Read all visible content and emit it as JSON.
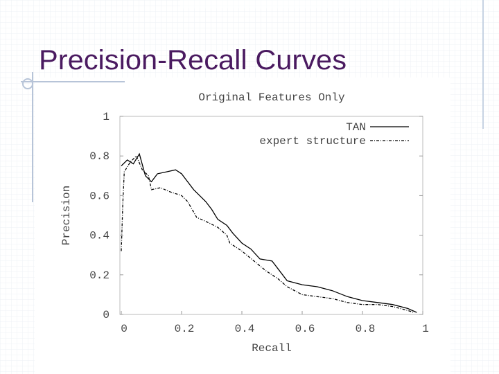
{
  "slide_title": "Precision-Recall Curves",
  "chart_data": {
    "type": "line",
    "title": "Original Features Only",
    "x_label": "Recall",
    "y_label": "Precision",
    "xlim": [
      0,
      1
    ],
    "ylim": [
      0,
      1
    ],
    "xticks": [
      0,
      0.2,
      0.4,
      0.6,
      0.8,
      1
    ],
    "yticks": [
      0,
      0.2,
      0.4,
      0.6,
      0.8,
      1
    ],
    "legend": "top-right",
    "series": [
      {
        "name": "TAN",
        "color": "#000000",
        "line_style": "solid",
        "x": [
          0.0,
          0.02,
          0.04,
          0.06,
          0.08,
          0.1,
          0.12,
          0.15,
          0.18,
          0.2,
          0.22,
          0.24,
          0.26,
          0.28,
          0.3,
          0.32,
          0.35,
          0.37,
          0.4,
          0.43,
          0.46,
          0.5,
          0.52,
          0.55,
          0.6,
          0.65,
          0.7,
          0.75,
          0.8,
          0.85,
          0.9,
          0.95,
          0.98
        ],
        "values": [
          0.75,
          0.78,
          0.76,
          0.81,
          0.7,
          0.67,
          0.71,
          0.72,
          0.73,
          0.71,
          0.67,
          0.63,
          0.6,
          0.57,
          0.53,
          0.48,
          0.45,
          0.41,
          0.36,
          0.33,
          0.28,
          0.27,
          0.23,
          0.17,
          0.15,
          0.14,
          0.12,
          0.09,
          0.07,
          0.06,
          0.05,
          0.03,
          0.01
        ]
      },
      {
        "name": "expert structure",
        "color": "#000000",
        "line_style": "dashed",
        "x": [
          0.0,
          0.005,
          0.01,
          0.03,
          0.05,
          0.07,
          0.09,
          0.1,
          0.13,
          0.16,
          0.2,
          0.22,
          0.25,
          0.28,
          0.32,
          0.35,
          0.36,
          0.4,
          0.44,
          0.48,
          0.52,
          0.55,
          0.6,
          0.65,
          0.7,
          0.75,
          0.8,
          0.85,
          0.9,
          0.95,
          0.97
        ],
        "values": [
          0.32,
          0.56,
          0.72,
          0.77,
          0.8,
          0.73,
          0.7,
          0.63,
          0.64,
          0.62,
          0.6,
          0.57,
          0.49,
          0.47,
          0.44,
          0.4,
          0.36,
          0.32,
          0.27,
          0.22,
          0.18,
          0.14,
          0.1,
          0.09,
          0.08,
          0.06,
          0.05,
          0.05,
          0.04,
          0.02,
          0.01
        ]
      }
    ]
  }
}
